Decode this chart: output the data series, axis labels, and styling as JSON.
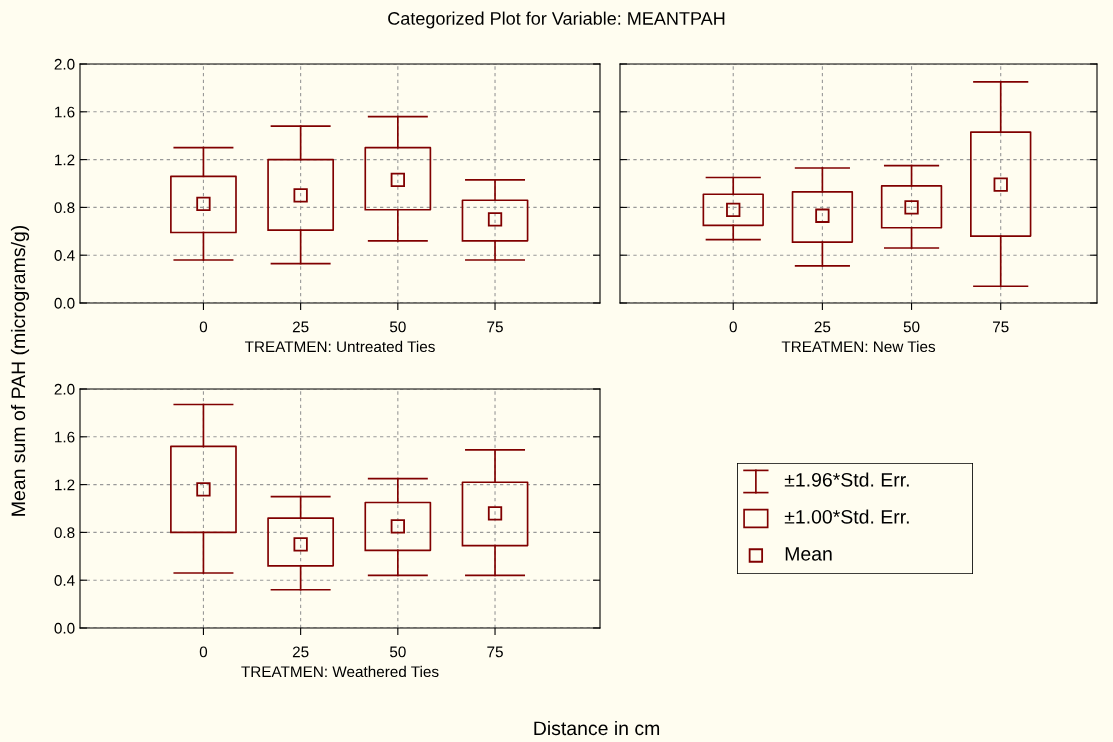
{
  "chart_data": [
    {
      "type": "box",
      "title": "Categorized Plot for Variable: MEANTPAH",
      "ylabel": "Mean sum of PAH (micrograms/g)",
      "annotations": [
        "Distance in cm"
      ],
      "xlabel": "TREATMEN: Untreated Ties",
      "categories": [
        "0",
        "25",
        "50",
        "75"
      ],
      "color": "#800000",
      "marker": "square",
      "grid": true,
      "boxes": [
        {
          "low": 0.36,
          "q1": 0.59,
          "median": 0.83,
          "q3": 1.06,
          "high": 1.3
        },
        {
          "low": 0.33,
          "q1": 0.61,
          "median": 0.9,
          "q3": 1.2,
          "high": 1.48
        },
        {
          "low": 0.52,
          "q1": 0.78,
          "median": 1.03,
          "q3": 1.3,
          "high": 1.56
        },
        {
          "low": 0.36,
          "q1": 0.52,
          "median": 0.7,
          "q3": 0.86,
          "high": 1.03
        }
      ],
      "ylim": [
        0,
        2
      ],
      "yticks": [
        {
          "value": 0,
          "label": "0.0"
        },
        {
          "value": 0.4,
          "label": "0.4"
        },
        {
          "value": 0.8,
          "label": "0.8"
        },
        {
          "value": 1.2,
          "label": "1.2"
        },
        {
          "value": 1.6,
          "label": "1.6"
        },
        {
          "value": 2,
          "label": "2.0"
        }
      ]
    },
    {
      "type": "box",
      "xlabel": "TREATMEN: New Ties",
      "categories": [
        "0",
        "25",
        "50",
        "75"
      ],
      "color": "#800000",
      "marker": "square",
      "grid": true,
      "tick_labels": "x",
      "boxes": [
        {
          "low": 0.53,
          "q1": 0.65,
          "median": 0.78,
          "q3": 0.91,
          "high": 1.05
        },
        {
          "low": 0.31,
          "q1": 0.51,
          "median": 0.73,
          "q3": 0.93,
          "high": 1.13
        },
        {
          "low": 0.46,
          "q1": 0.63,
          "median": 0.8,
          "q3": 0.98,
          "high": 1.15
        },
        {
          "low": 0.14,
          "q1": 0.56,
          "median": 0.99,
          "q3": 1.43,
          "high": 1.85
        }
      ],
      "ylim": [
        0,
        2
      ],
      "yticks": [
        0,
        0.4,
        0.8,
        1.2,
        1.6,
        2
      ]
    },
    {
      "type": "box",
      "xlabel": "TREATMEN: Weathered Ties",
      "categories": [
        "0",
        "25",
        "50",
        "75"
      ],
      "color": "#800000",
      "marker": "square",
      "grid": true,
      "boxes": [
        {
          "low": 0.46,
          "q1": 0.8,
          "median": 1.16,
          "q3": 1.52,
          "high": 1.87
        },
        {
          "low": 0.32,
          "q1": 0.52,
          "median": 0.7,
          "q3": 0.92,
          "high": 1.1
        },
        {
          "low": 0.44,
          "q1": 0.65,
          "median": 0.85,
          "q3": 1.05,
          "high": 1.25
        },
        {
          "low": 0.44,
          "q1": 0.69,
          "median": 0.96,
          "q3": 1.22,
          "high": 1.49
        }
      ],
      "ylim": [
        0,
        2
      ],
      "yticks": [
        {
          "value": 0,
          "label": "0.0"
        },
        {
          "value": 0.4,
          "label": "0.4"
        },
        {
          "value": 0.8,
          "label": "0.8"
        },
        {
          "value": 1.2,
          "label": "1.2"
        },
        {
          "value": 1.6,
          "label": "1.6"
        },
        {
          "value": 2,
          "label": "2.0"
        }
      ]
    },
    {
      "type": "other",
      "color": "#800000",
      "annotations": [
        "±1.96*Std. Err.",
        "±1.00*Std. Err.",
        "Mean"
      ]
    }
  ]
}
